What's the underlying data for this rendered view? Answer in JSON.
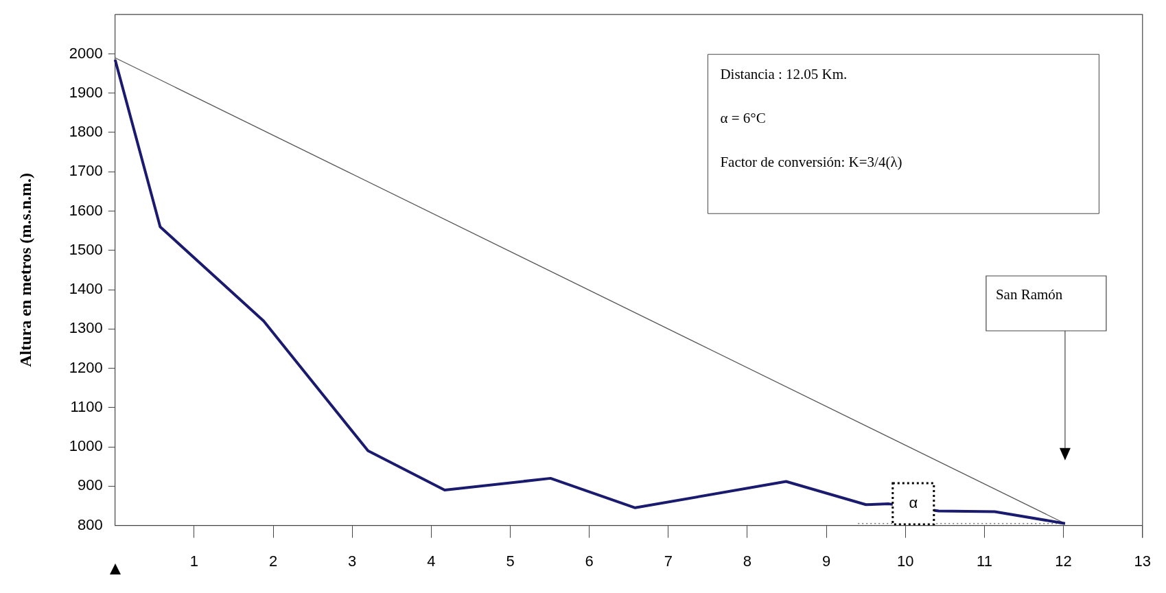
{
  "chart_data": {
    "type": "line",
    "ylabel": "Altura en metros (m.s.n.m.)",
    "xlim": [
      0,
      13
    ],
    "xticks": [
      1,
      2,
      3,
      4,
      5,
      6,
      7,
      8,
      9,
      10,
      11,
      12,
      13
    ],
    "ylim": [
      800,
      2100
    ],
    "yticks": [
      800,
      900,
      1000,
      1100,
      1200,
      1300,
      1400,
      1500,
      1600,
      1700,
      1800,
      1900,
      2000
    ],
    "grid": false,
    "legend": false,
    "marker": "none",
    "series": [
      {
        "color": "#1a1a6e",
        "x": [
          0,
          0.57,
          1.88,
          3.2,
          4.17,
          5.51,
          6.58,
          8.49,
          9.5,
          9.79,
          10.42,
          11.13,
          12.02
        ],
        "values": [
          1985,
          1560,
          1320,
          990,
          890,
          920,
          845,
          912,
          853,
          855,
          837,
          835,
          805
        ]
      },
      {
        "color": "#555555",
        "x": [
          0,
          12.02
        ],
        "values": [
          1990,
          805
        ]
      },
      {
        "color": "#777777",
        "line_style": "dotted",
        "x": [
          9.4,
          12.02
        ],
        "values": [
          805,
          805
        ]
      }
    ],
    "annotations": [
      "Distancia : 12.05 Km.",
      "α = 6°C",
      "Factor de conversión: K=3/4(λ)",
      {
        "text": "α",
        "x": 10.1,
        "y": 855
      },
      "San Ramón"
    ]
  }
}
